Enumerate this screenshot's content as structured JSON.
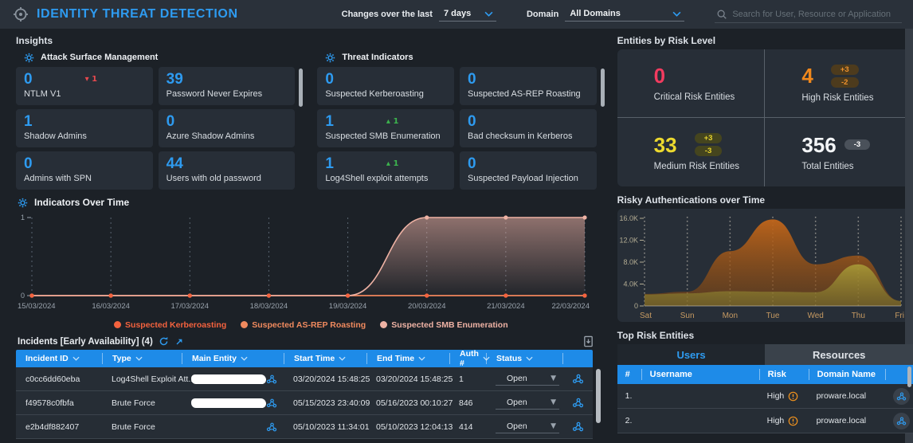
{
  "header": {
    "title": "IDENTITY THREAT DETECTION",
    "changes_label": "Changes over the last",
    "changes_value": "7 days",
    "domain_label": "Domain",
    "domain_value": "All Domains",
    "search_placeholder": "Search for User, Resource or Application"
  },
  "colors": {
    "accent_blue": "#2e9bf0",
    "table_header_blue": "#1e8be8",
    "critical": "#f23b5f",
    "high": "#f0881c",
    "medium": "#ecd92e",
    "delta_down_red": "#e8494e",
    "delta_up_green": "#3cb44e"
  },
  "insights": {
    "title": "Insights",
    "groups": [
      {
        "title": "Attack Surface Management",
        "tiles": [
          {
            "value": "0",
            "label": "NTLM V1",
            "delta": "1",
            "delta_dir": "down"
          },
          {
            "value": "39",
            "label": "Password Never Expires"
          },
          {
            "value": "1",
            "label": "Shadow Admins"
          },
          {
            "value": "0",
            "label": "Azure Shadow Admins"
          },
          {
            "value": "0",
            "label": "Admins with SPN"
          },
          {
            "value": "44",
            "label": "Users with old password"
          }
        ]
      },
      {
        "title": "Threat Indicators",
        "tiles": [
          {
            "value": "0",
            "label": "Suspected Kerberoasting"
          },
          {
            "value": "0",
            "label": "Suspected AS-REP Roasting"
          },
          {
            "value": "1",
            "label": "Suspected SMB Enumeration",
            "delta": "1",
            "delta_dir": "up"
          },
          {
            "value": "0",
            "label": "Bad checksum in Kerberos"
          },
          {
            "value": "1",
            "label": "Log4Shell exploit attempts",
            "delta": "1",
            "delta_dir": "up"
          },
          {
            "value": "0",
            "label": "Suspected Payload Injection"
          }
        ]
      }
    ]
  },
  "chart_data": [
    {
      "id": "indicators-over-time",
      "type": "line",
      "title": "Indicators Over Time",
      "x": [
        "15/03/2024",
        "16/03/2024",
        "17/03/2024",
        "18/03/2024",
        "19/03/2024",
        "20/03/2024",
        "21/03/2024",
        "22/03/2024"
      ],
      "ylim": [
        0,
        1
      ],
      "yticks": [
        0,
        1
      ],
      "grid": "dashed-vertical",
      "legend_position": "bottom",
      "series": [
        {
          "name": "Suspected Kerberoasting",
          "color": "#f4623e",
          "values": [
            0,
            0,
            0,
            0,
            0,
            0,
            0,
            0
          ]
        },
        {
          "name": "Suspected AS-REP Roasting",
          "color": "#f08a5e",
          "values": [
            0,
            0,
            0,
            0,
            0,
            0,
            0,
            0
          ]
        },
        {
          "name": "Suspected SMB Enumeration",
          "color": "#eeb2a4",
          "values": [
            0,
            0,
            0,
            0,
            0,
            1,
            1,
            1
          ],
          "fill": true
        }
      ]
    },
    {
      "id": "risky-authentications",
      "type": "area",
      "title": "Risky Authentications over Time",
      "x": [
        "Sat",
        "Sun",
        "Mon",
        "Tue",
        "Wed",
        "Thu",
        "Fri"
      ],
      "ylim": [
        0,
        16000
      ],
      "yticks": [
        0,
        4000,
        8000,
        12000,
        16000
      ],
      "ytick_labels": [
        "0",
        "4.0K",
        "8.0K",
        "12.0K",
        "16.0K"
      ],
      "grid": "dotted-vertical",
      "series": [
        {
          "name": "risky-authentications-high",
          "color_top": "#c2661a",
          "color_bottom": "#7c4512",
          "values": [
            2200,
            2600,
            10000,
            15800,
            7600,
            9200,
            900
          ]
        },
        {
          "name": "risky-authentications-low",
          "color_top": "#aa9e38",
          "color_bottom": "#847c2e",
          "values": [
            2100,
            2300,
            2700,
            2600,
            2500,
            7600,
            900
          ]
        }
      ]
    }
  ],
  "incidents": {
    "title": "Incidents [Early Availability] (4)",
    "columns": [
      "Incident ID",
      "Type",
      "Main Entity",
      "Start Time",
      "End Time",
      "Auth #",
      "Status"
    ],
    "rows": [
      {
        "id": "c0cc6dd60eba",
        "type": "Log4Shell Exploit Att...",
        "start": "03/20/2024 15:48:25",
        "end": "03/20/2024 15:48:25",
        "auth": "1",
        "status": "Open"
      },
      {
        "id": "f49578c0fbfa",
        "type": "Brute Force",
        "start": "05/15/2023 23:40:09",
        "end": "05/16/2023 00:10:27",
        "auth": "846",
        "status": "Open"
      },
      {
        "id": "e2b4df882407",
        "type": "Brute Force",
        "start": "05/10/2023 11:34:01",
        "end": "05/10/2023 12:04:13",
        "auth": "414",
        "status": "Open"
      }
    ]
  },
  "entities": {
    "title": "Entities by Risk Level",
    "critical": {
      "value": "0",
      "label": "Critical Risk Entities"
    },
    "high": {
      "value": "4",
      "label": "High Risk Entities",
      "delta_up": "+3",
      "delta_down": "-2"
    },
    "medium": {
      "value": "33",
      "label": "Medium Risk Entities",
      "delta_up": "+3",
      "delta_down": "-3"
    },
    "total": {
      "value": "356",
      "label": "Total Entities",
      "delta": "-3"
    }
  },
  "top_risk": {
    "title": "Top Risk Entities",
    "tabs": [
      "Users",
      "Resources"
    ],
    "columns": [
      "#",
      "Username",
      "Risk",
      "Domain Name"
    ],
    "rows": [
      {
        "rank": "1.",
        "risk": "High",
        "domain": "proware.local"
      },
      {
        "rank": "2.",
        "risk": "High",
        "domain": "proware.local"
      }
    ]
  }
}
